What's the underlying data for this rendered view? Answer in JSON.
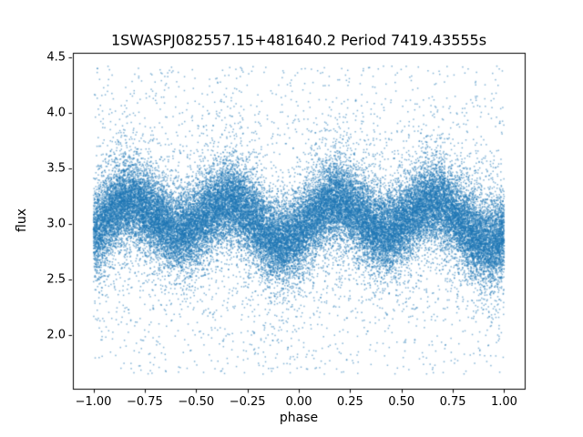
{
  "figure": {
    "background": "#ffffff",
    "text_color": "#000000"
  },
  "chart_data": {
    "type": "scatter",
    "title": "1SWASPJ082557.15+481640.2 Period 7419.43555s",
    "xlabel": "phase",
    "ylabel": "flux",
    "xlim": [
      -1.1,
      1.1
    ],
    "ylim": [
      1.52,
      4.54
    ],
    "grid": false,
    "legend": null,
    "xticks": {
      "values": [
        -1.0,
        -0.75,
        -0.5,
        -0.25,
        0.0,
        0.25,
        0.5,
        0.75,
        1.0
      ],
      "labels": [
        "−1.00",
        "−0.75",
        "−0.50",
        "−0.25",
        "0.00",
        "0.25",
        "0.50",
        "0.75",
        "1.00"
      ]
    },
    "yticks": {
      "values": [
        2.0,
        2.5,
        3.0,
        3.5,
        4.0,
        4.5
      ],
      "labels": [
        "2.0",
        "2.5",
        "3.0",
        "3.5",
        "4.0",
        "4.5"
      ]
    },
    "series": [
      {
        "name": "phase-folded flux measurements",
        "marker_color": "#1f77b4",
        "marker_alpha": 0.55,
        "marker_size_px": 1.5,
        "n_points": 40000,
        "seed": 20090825,
        "model": {
          "description": "dense noisy band of flux centered near 3.0 with a double-humped (ellipsoidal) modulation of the mean, minima near phase -0.08 and 0.42, plus sparse outliers spread from ~1.65 to ~4.42 across all phases",
          "phase_range": [
            -1,
            1
          ],
          "baseline_flux": 3.04,
          "modulation_amp": 0.16,
          "modulation_cycles_per_phase": 2,
          "modulation_phase_offset": 0.08,
          "unequal_minima_amp": 0.05,
          "noise_sigma_core": 0.17,
          "noise_sigma_wide": 0.34,
          "wide_fraction": 0.2,
          "outlier_fraction": 0.05,
          "outlier_flux_range": [
            1.65,
            4.42
          ]
        }
      }
    ]
  }
}
